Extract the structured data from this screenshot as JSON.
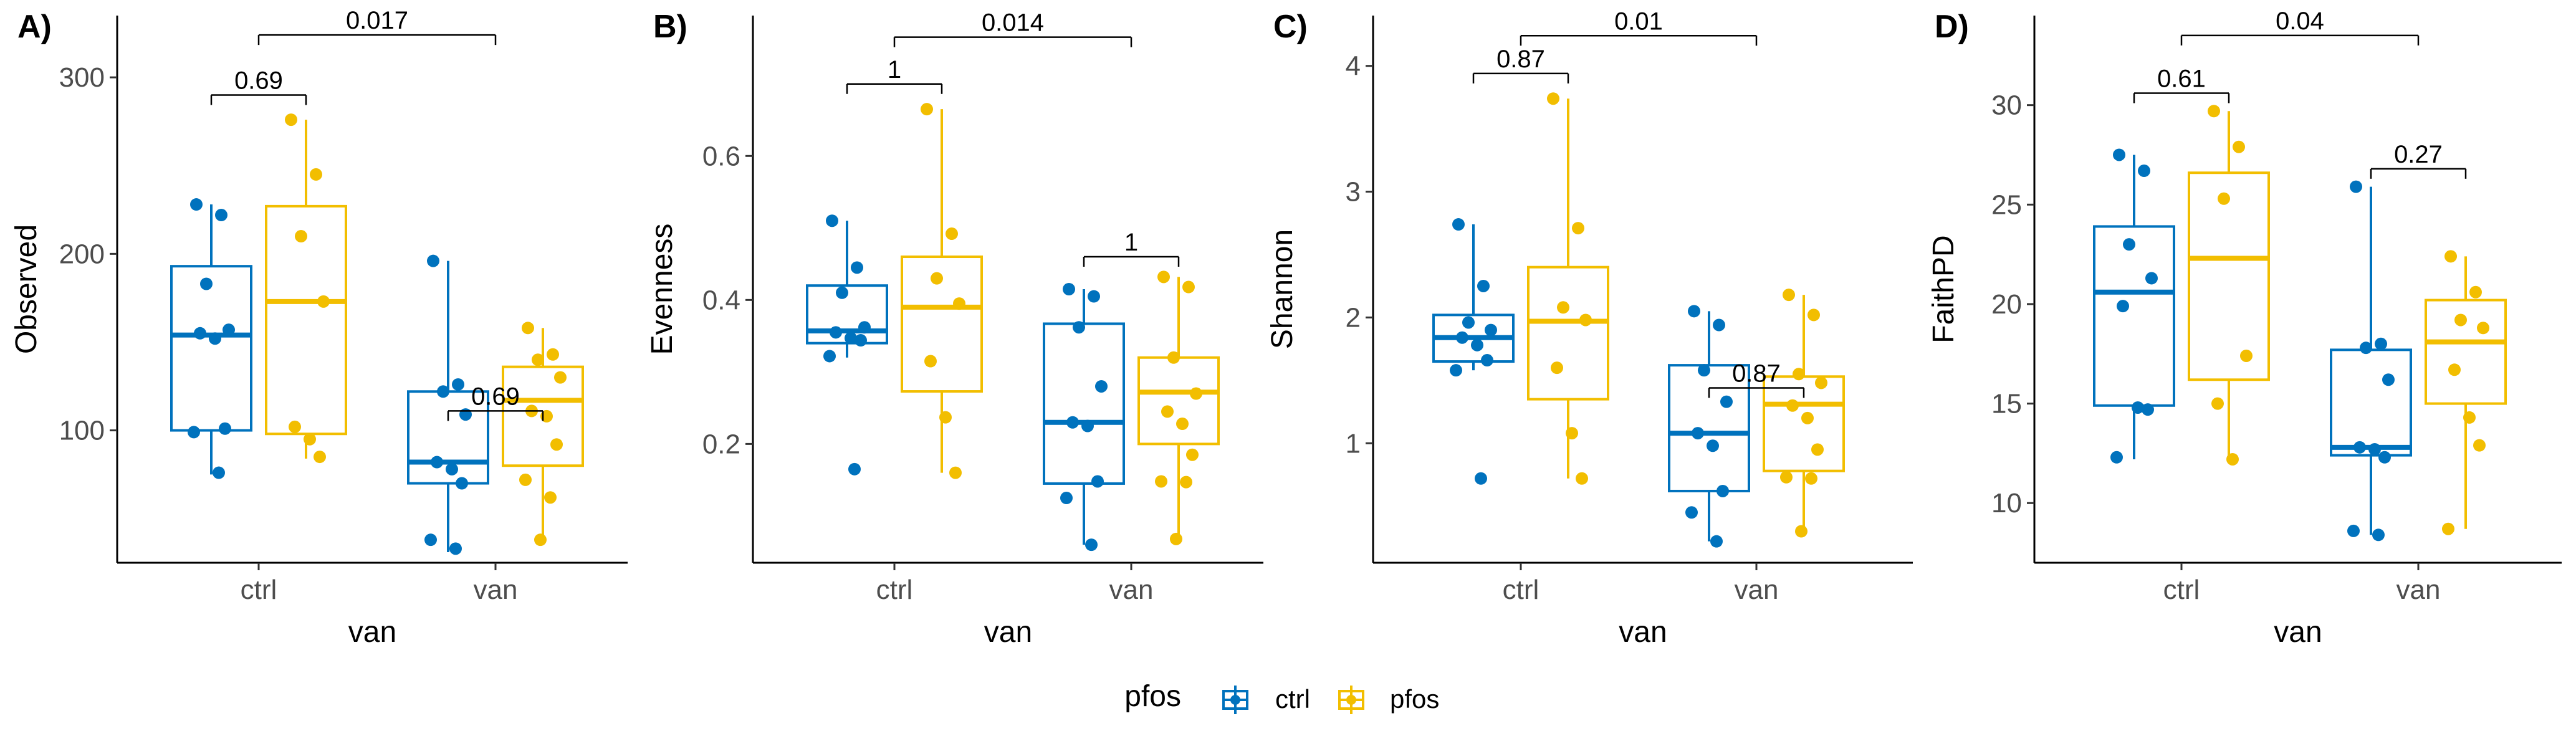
{
  "colors": {
    "ctrl": "#0072BD",
    "pfos": "#F2BE00",
    "axis": "#000000",
    "tick_text": "#4d4d4d"
  },
  "legend": {
    "title": "pfos",
    "items": [
      "ctrl",
      "pfos"
    ],
    "position": "bottom"
  },
  "chart_data": [
    {
      "type": "boxplot",
      "tag": "A)",
      "ylabel": "Observed",
      "xlabel": "van",
      "categories": [
        "ctrl",
        "van"
      ],
      "ylim": [
        25,
        335
      ],
      "yticks": [
        100,
        200,
        300
      ],
      "series": [
        {
          "name": "ctrl",
          "boxes": [
            {
              "q1": 100,
              "median": 154,
              "q3": 193,
              "whisker_low": 75,
              "whisker_high": 228,
              "points": [
                228,
                222,
                183,
                157,
                155,
                152,
                101,
                99,
                76
              ]
            },
            {
              "q1": 70,
              "median": 82,
              "q3": 122,
              "whisker_low": 31,
              "whisker_high": 196,
              "points": [
                196,
                126,
                122,
                109,
                82,
                78,
                70,
                38,
                33
              ]
            }
          ]
        },
        {
          "name": "pfos",
          "boxes": [
            {
              "q1": 98,
              "median": 173,
              "q3": 227,
              "whisker_low": 84,
              "whisker_high": 276,
              "points": [
                276,
                245,
                210,
                173,
                102,
                95,
                85
              ]
            },
            {
              "q1": 80,
              "median": 117,
              "q3": 136,
              "whisker_low": 38,
              "whisker_high": 158,
              "points": [
                158,
                143,
                140,
                130,
                111,
                108,
                92,
                72,
                62,
                38
              ]
            }
          ]
        }
      ],
      "comparisons": [
        {
          "label": "0.69",
          "from": 0,
          "to": 1,
          "y": 290
        },
        {
          "label": "0.69",
          "from": 2,
          "to": 3,
          "y": 111
        },
        {
          "label": "0.017",
          "from": 0.5,
          "to": 2.5,
          "y": 324
        }
      ]
    },
    {
      "type": "boxplot",
      "tag": "B)",
      "ylabel": "Evenness",
      "xlabel": "van",
      "categories": [
        "ctrl",
        "van"
      ],
      "ylim": [
        0.035,
        0.795
      ],
      "yticks": [
        0.2,
        0.4,
        0.6
      ],
      "series": [
        {
          "name": "ctrl",
          "boxes": [
            {
              "q1": 0.34,
              "median": 0.357,
              "q3": 0.42,
              "whisker_low": 0.32,
              "whisker_high": 0.51,
              "points": [
                0.51,
                0.445,
                0.41,
                0.362,
                0.355,
                0.347,
                0.344,
                0.322,
                0.165
              ]
            },
            {
              "q1": 0.145,
              "median": 0.23,
              "q3": 0.367,
              "whisker_low": 0.06,
              "whisker_high": 0.415,
              "points": [
                0.415,
                0.405,
                0.362,
                0.28,
                0.23,
                0.225,
                0.148,
                0.125,
                0.06
              ]
            }
          ]
        },
        {
          "name": "pfos",
          "boxes": [
            {
              "q1": 0.273,
              "median": 0.39,
              "q3": 0.46,
              "whisker_low": 0.16,
              "whisker_high": 0.665,
              "points": [
                0.665,
                0.492,
                0.43,
                0.395,
                0.315,
                0.237,
                0.16
              ]
            },
            {
              "q1": 0.2,
              "median": 0.272,
              "q3": 0.32,
              "whisker_low": 0.068,
              "whisker_high": 0.432,
              "points": [
                0.432,
                0.418,
                0.32,
                0.27,
                0.245,
                0.228,
                0.185,
                0.148,
                0.147,
                0.068
              ]
            }
          ]
        }
      ],
      "comparisons": [
        {
          "label": "1",
          "from": 0,
          "to": 1,
          "y": 0.7
        },
        {
          "label": "1",
          "from": 2,
          "to": 3,
          "y": 0.46
        },
        {
          "label": "0.014",
          "from": 0.5,
          "to": 2.5,
          "y": 0.765
        }
      ]
    },
    {
      "type": "boxplot",
      "tag": "C)",
      "ylabel": "Shannon",
      "xlabel": "van",
      "categories": [
        "ctrl",
        "van"
      ],
      "ylim": [
        0.05,
        4.4
      ],
      "yticks": [
        1,
        2,
        3,
        4
      ],
      "series": [
        {
          "name": "ctrl",
          "boxes": [
            {
              "q1": 1.65,
              "median": 1.84,
              "q3": 2.02,
              "whisker_low": 1.58,
              "whisker_high": 2.74,
              "points": [
                2.74,
                2.25,
                1.96,
                1.9,
                1.84,
                1.78,
                1.66,
                1.58,
                0.72
              ]
            },
            {
              "q1": 0.62,
              "median": 1.08,
              "q3": 1.62,
              "whisker_low": 0.22,
              "whisker_high": 2.05,
              "points": [
                2.05,
                1.94,
                1.58,
                1.33,
                1.08,
                0.98,
                0.62,
                0.45,
                0.22
              ]
            }
          ]
        },
        {
          "name": "pfos",
          "boxes": [
            {
              "q1": 1.35,
              "median": 1.97,
              "q3": 2.4,
              "whisker_low": 0.72,
              "whisker_high": 3.74,
              "points": [
                3.74,
                2.71,
                2.08,
                1.98,
                1.6,
                1.08,
                0.72
              ]
            },
            {
              "q1": 0.78,
              "median": 1.31,
              "q3": 1.53,
              "whisker_low": 0.3,
              "whisker_high": 2.18,
              "points": [
                2.18,
                2.02,
                1.55,
                1.48,
                1.3,
                1.2,
                0.95,
                0.73,
                0.72,
                0.3
              ]
            }
          ]
        }
      ],
      "comparisons": [
        {
          "label": "0.87",
          "from": 0,
          "to": 1,
          "y": 3.94
        },
        {
          "label": "0.87",
          "from": 2,
          "to": 3,
          "y": 1.44
        },
        {
          "label": "0.01",
          "from": 0.5,
          "to": 2.5,
          "y": 4.24
        }
      ]
    },
    {
      "type": "boxplot",
      "tag": "D)",
      "ylabel": "FaithPD",
      "xlabel": "van",
      "categories": [
        "ctrl",
        "van"
      ],
      "ylim": [
        7,
        34.5
      ],
      "yticks": [
        10,
        15,
        20,
        25,
        30
      ],
      "series": [
        {
          "name": "ctrl",
          "boxes": [
            {
              "q1": 14.9,
              "median": 20.6,
              "q3": 23.9,
              "whisker_low": 12.2,
              "whisker_high": 27.5,
              "points": [
                27.5,
                26.7,
                23,
                21.3,
                19.9,
                14.8,
                14.7,
                12.3
              ]
            },
            {
              "q1": 12.4,
              "median": 12.8,
              "q3": 17.7,
              "whisker_low": 8.4,
              "whisker_high": 25.9,
              "points": [
                25.9,
                18,
                17.8,
                16.2,
                12.8,
                12.7,
                12.3,
                8.6,
                8.4
              ]
            }
          ]
        },
        {
          "name": "pfos",
          "boxes": [
            {
              "q1": 16.2,
              "median": 22.3,
              "q3": 26.6,
              "whisker_low": 12.2,
              "whisker_high": 29.7,
              "points": [
                29.7,
                27.9,
                25.3,
                17.4,
                15,
                12.2
              ]
            },
            {
              "q1": 15,
              "median": 18.1,
              "q3": 20.2,
              "whisker_low": 8.7,
              "whisker_high": 22.4,
              "points": [
                22.4,
                20.6,
                19.2,
                18.8,
                16.7,
                14.3,
                12.9,
                8.7
              ]
            }
          ]
        }
      ],
      "comparisons": [
        {
          "label": "0.61",
          "from": 0,
          "to": 1,
          "y": 30.6
        },
        {
          "label": "0.27",
          "from": 2,
          "to": 3,
          "y": 26.8
        },
        {
          "label": "0.04",
          "from": 0.5,
          "to": 2.5,
          "y": 33.5
        }
      ]
    }
  ]
}
